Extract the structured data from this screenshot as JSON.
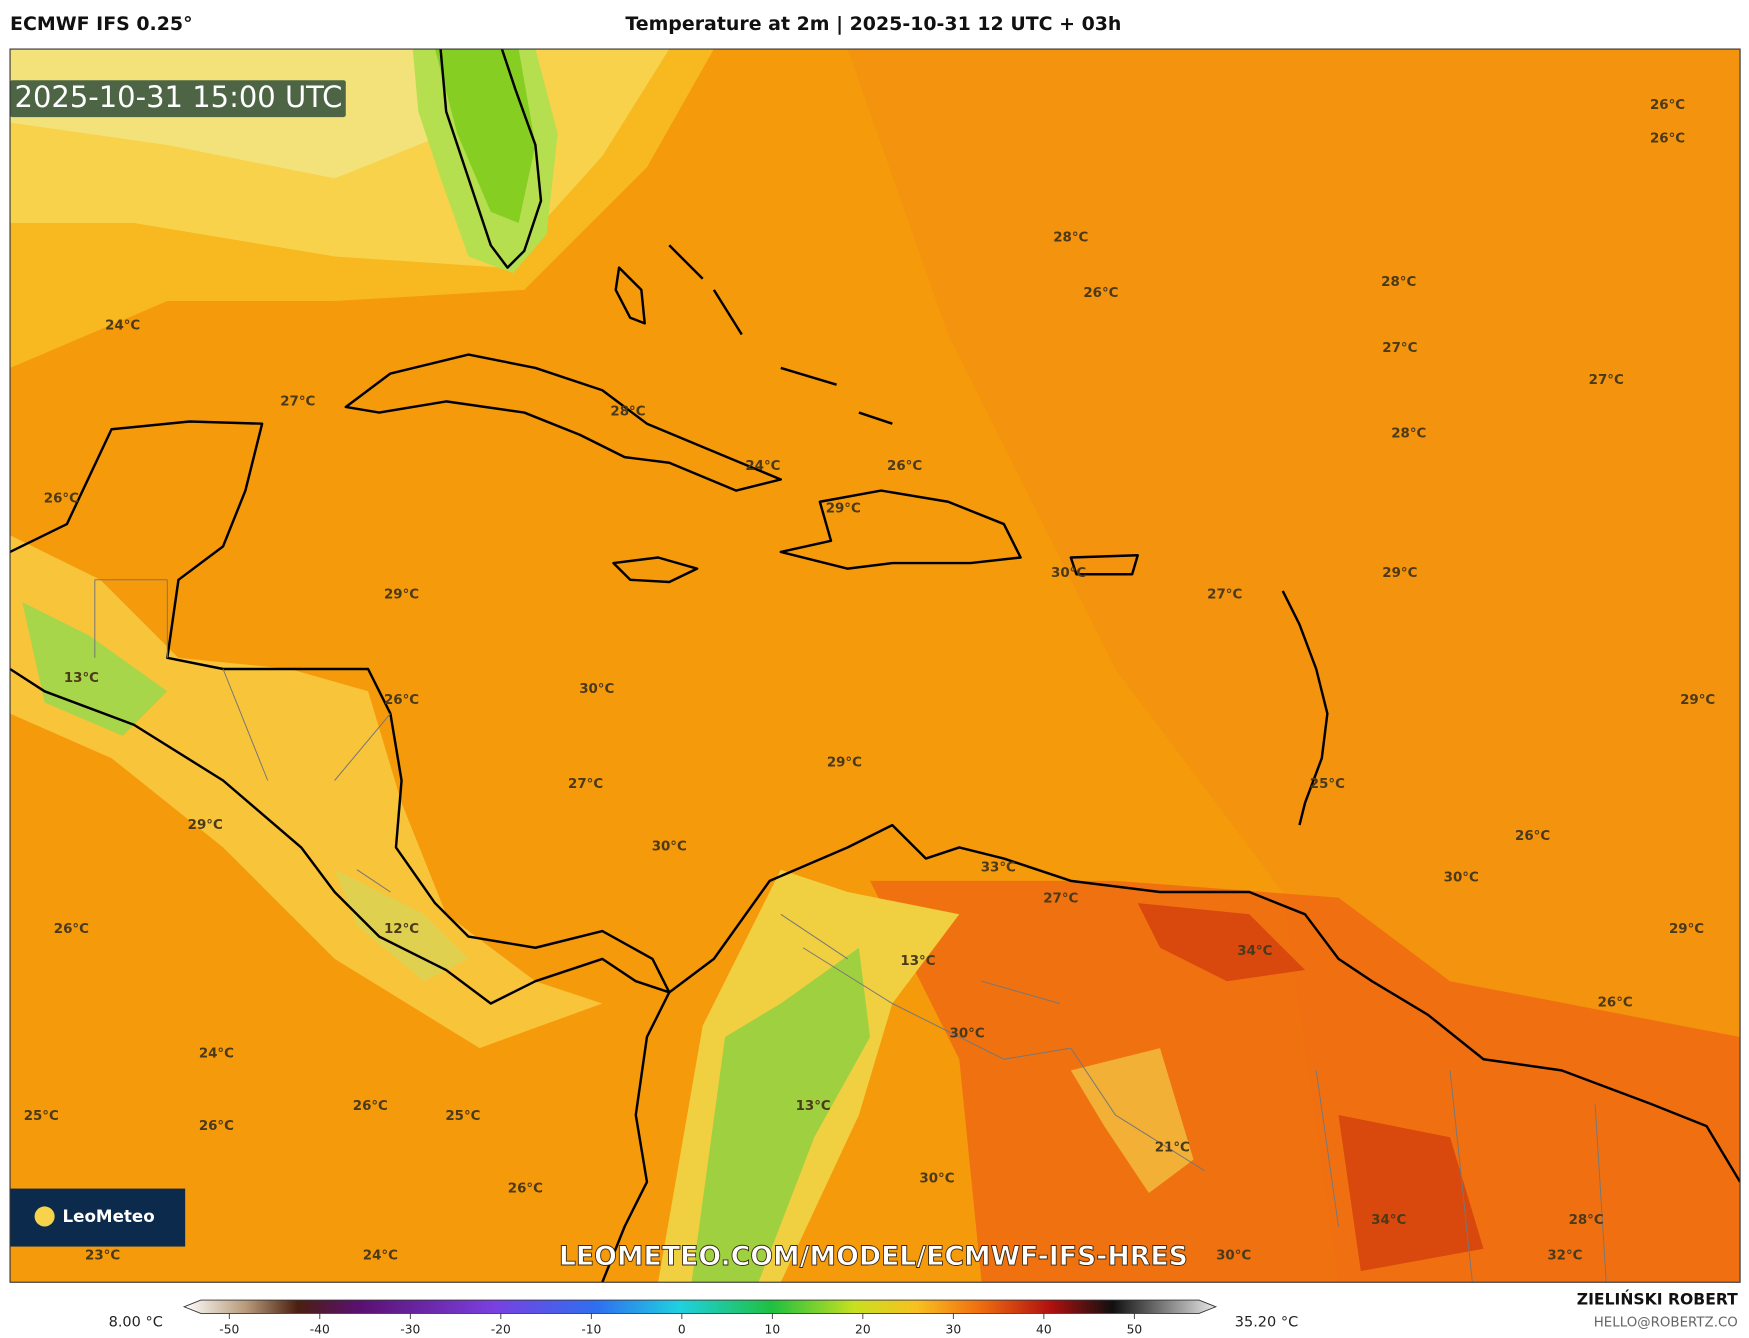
{
  "header": {
    "model": "ECMWF IFS 0.25°",
    "title": "Temperature at 2m | 2025-10-31 12 UTC + 03h",
    "author": "ZIELIŃSKI ROBERT",
    "email": "HELLO@ROBERTZ.CO"
  },
  "timestamp": "2025-10-31 15:00 UTC",
  "watermark": "LEOMETEO.COM/MODEL/ECMWF-IFS-HRES",
  "logo": "LeoMeteo",
  "temperature_labels": [
    "26°C",
    "26°C",
    "28°C",
    "26°C",
    "28°C",
    "24°C",
    "27°C",
    "27°C",
    "27°C",
    "28°C",
    "28°C",
    "24°C",
    "26°C",
    "26°C",
    "29°C",
    "30°C",
    "29°C",
    "27°C",
    "29°C",
    "13°C",
    "30°C",
    "26°C",
    "29°C",
    "29°C",
    "27°C",
    "25°C",
    "29°C",
    "26°C",
    "30°C",
    "33°C",
    "30°C",
    "27°C",
    "26°C",
    "12°C",
    "29°C",
    "34°C",
    "13°C",
    "26°C",
    "30°C",
    "24°C",
    "13°C",
    "26°C",
    "25°C",
    "25°C",
    "26°C",
    "21°C",
    "30°C",
    "26°C",
    "34°C",
    "28°C",
    "23°C",
    "24°C",
    "30°C",
    "32°C"
  ],
  "colorbar": {
    "min_label": "8.00 °C",
    "max_label": "35.20 °C",
    "lim": [
      -55,
      59
    ],
    "ticks": [
      -50,
      -40,
      -30,
      -20,
      -10,
      0,
      10,
      20,
      30,
      40,
      50
    ]
  }
}
